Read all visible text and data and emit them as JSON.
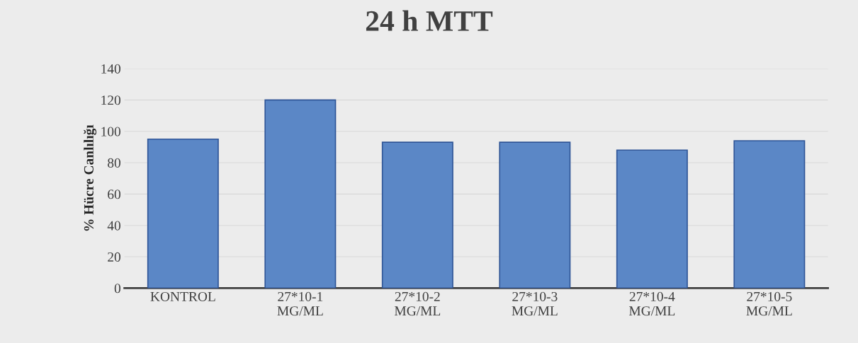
{
  "chart_data": {
    "type": "bar",
    "title": "24 h MTT",
    "ylabel": "% Hücre Canlılığı",
    "categories": [
      "KONTROL",
      "27*10-1\nMG/ML",
      "27*10-2\nMG/ML",
      "27*10-3\nMG/ML",
      "27*10-4\nMG/ML",
      "27*10-5\nMG/ML"
    ],
    "values": [
      95,
      120,
      93,
      93,
      88,
      94
    ],
    "color": "#5b87c6",
    "ylim": [
      0,
      140
    ],
    "yticks": [
      0,
      20,
      40,
      60,
      80,
      100,
      120,
      140
    ],
    "grid": "y"
  }
}
